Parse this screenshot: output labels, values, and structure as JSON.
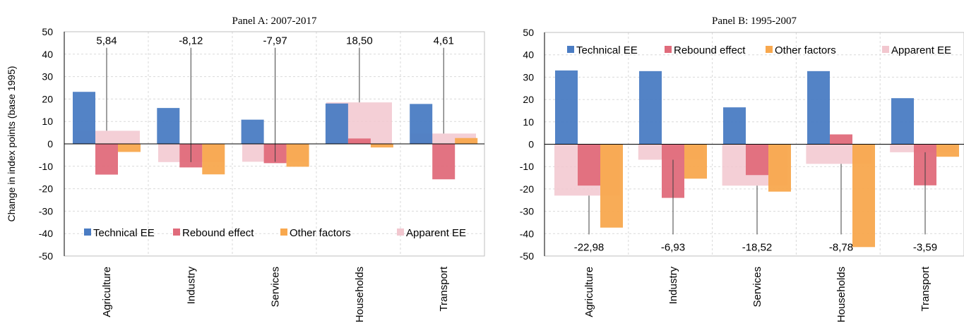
{
  "y_axis_label": "Change in index points (base 1995)",
  "colors": {
    "technical": "#4a7cc3",
    "rebound": "#e06b7b",
    "other": "#f8a84e",
    "apparent": "#f2c7cf",
    "grid": "#d9d9d9",
    "axis": "#000000"
  },
  "chart_data": [
    {
      "type": "bar",
      "title": "Panel A: 2007-2017",
      "categories": [
        "Agriculture",
        "Industry",
        "Services",
        "Households",
        "Transport"
      ],
      "ylim": [
        -50,
        50
      ],
      "yticks": [
        -50,
        -40,
        -30,
        -20,
        -10,
        0,
        10,
        20,
        30,
        40,
        50
      ],
      "grid": true,
      "legend_position": "bottom",
      "series": [
        {
          "name": "Technical EE",
          "values": [
            23.2,
            16.0,
            10.8,
            18.0,
            17.8
          ]
        },
        {
          "name": "Rebound effect",
          "values": [
            -13.7,
            -10.5,
            -8.6,
            2.4,
            -15.8
          ]
        },
        {
          "name": "Other factors",
          "values": [
            -3.6,
            -13.6,
            -10.2,
            -1.6,
            2.6
          ]
        },
        {
          "name": "Apparent EE",
          "values": [
            5.84,
            -8.12,
            -7.97,
            18.5,
            4.61
          ]
        }
      ],
      "data_labels": [
        "5,84",
        "-8,12",
        "-7,97",
        "18,50",
        "4,61"
      ],
      "label_value": 46
    },
    {
      "type": "bar",
      "title": "Panel B: 1995-2007",
      "categories": [
        "Agriculture",
        "Industry",
        "Services",
        "Households",
        "Transport"
      ],
      "ylim": [
        -50,
        50
      ],
      "yticks": [
        -50,
        -40,
        -30,
        -20,
        -10,
        0,
        10,
        20,
        30,
        40,
        50
      ],
      "grid": true,
      "legend_position": "top",
      "series": [
        {
          "name": "Technical EE",
          "values": [
            33.0,
            32.7,
            16.5,
            32.7,
            20.6
          ]
        },
        {
          "name": "Rebound effect",
          "values": [
            -18.5,
            -24.0,
            -13.8,
            4.4,
            -18.4
          ]
        },
        {
          "name": "Other factors",
          "values": [
            -37.3,
            -15.4,
            -21.2,
            -46.0,
            -5.6
          ]
        },
        {
          "name": "Apparent EE",
          "values": [
            -22.98,
            -6.93,
            -18.52,
            -8.78,
            -3.59
          ]
        }
      ],
      "data_labels": [
        "-22,98",
        "-6,93",
        "-18,52",
        "-8,78",
        "-3,59"
      ],
      "label_value": -46
    }
  ]
}
